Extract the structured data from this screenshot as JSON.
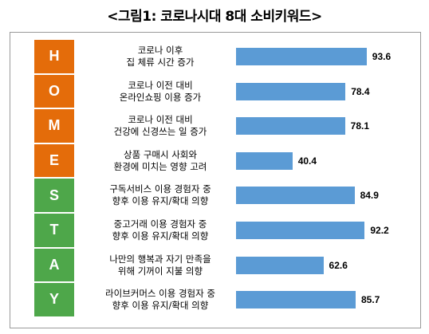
{
  "title": "<그림1: 코로나시대 8대 소비키워드>",
  "colors": {
    "orange": "#e46c0a",
    "green": "#4ea74a",
    "bar": "#5b9bd5"
  },
  "chart_data": {
    "type": "bar",
    "orientation": "horizontal",
    "categories": [
      "코로나 이후\n집 체류 시간 증가",
      "코로나 이전 대비\n온라인쇼핑 이용 증가",
      "코로나 이전 대비\n건강에 신경쓰는 일 증가",
      "상품 구매시 사회와\n환경에 미치는 영향 고려",
      "구독서비스 이용 경험자 중\n향후 이용 유지/확대 의향",
      "중고거래 이용 경험자 중\n향후 이용 유지/확대 의향",
      "나만의 행복과 자기 만족을\n위해 기꺼이 지불 의향",
      "라이브커머스 이용 경험자 중\n향후 이용 유지/확대 의향"
    ],
    "letters": [
      "H",
      "O",
      "M",
      "E",
      "S",
      "T",
      "A",
      "Y"
    ],
    "letter_colors": [
      "orange",
      "orange",
      "orange",
      "orange",
      "green",
      "green",
      "green",
      "green"
    ],
    "values": [
      93.6,
      78.4,
      78.1,
      40.4,
      84.9,
      92.2,
      62.6,
      85.7
    ],
    "value_labels": [
      "93.6",
      "78.4",
      "78.1",
      "40.4",
      "84.9",
      "92.2",
      "62.6",
      "85.7"
    ],
    "xlim": [
      0,
      100
    ]
  }
}
